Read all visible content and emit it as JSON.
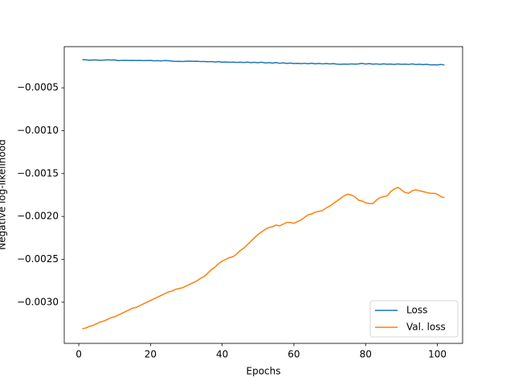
{
  "chart_data": {
    "type": "line",
    "xlabel": "Epochs",
    "ylabel": "Negative log-likelihood",
    "x": [
      1,
      2,
      3,
      4,
      5,
      6,
      7,
      8,
      9,
      10,
      11,
      12,
      13,
      14,
      15,
      16,
      17,
      18,
      19,
      20,
      21,
      22,
      23,
      24,
      25,
      26,
      27,
      28,
      29,
      30,
      31,
      32,
      33,
      34,
      35,
      36,
      37,
      38,
      39,
      40,
      41,
      42,
      43,
      44,
      45,
      46,
      47,
      48,
      49,
      50,
      51,
      52,
      53,
      54,
      55,
      56,
      57,
      58,
      59,
      60,
      61,
      62,
      63,
      64,
      65,
      66,
      67,
      68,
      69,
      70,
      71,
      72,
      73,
      74,
      75,
      76,
      77,
      78,
      79,
      80,
      81,
      82,
      83,
      84,
      85,
      86,
      87,
      88,
      89,
      90,
      91,
      92,
      93,
      94,
      95,
      96,
      97,
      98,
      99,
      100,
      101,
      102
    ],
    "series": [
      {
        "name": "Loss",
        "color": "#1f77b4",
        "values": [
          -0.000172,
          -0.000173,
          -0.000178,
          -0.000175,
          -0.000176,
          -0.000179,
          -0.000177,
          -0.000174,
          -0.000176,
          -0.000175,
          -0.000183,
          -0.000181,
          -0.00018,
          -0.000182,
          -0.000181,
          -0.000182,
          -0.000181,
          -0.000183,
          -0.000182,
          -0.000181,
          -0.000185,
          -0.000183,
          -0.000186,
          -0.000182,
          -0.000184,
          -0.000189,
          -0.000192,
          -0.000191,
          -0.000193,
          -0.00019,
          -0.000189,
          -0.000191,
          -0.00019,
          -0.000194,
          -0.000193,
          -0.000196,
          -0.000194,
          -0.000199,
          -0.000195,
          -0.000202,
          -0.000199,
          -0.000203,
          -0.000201,
          -0.000204,
          -0.000202,
          -0.000205,
          -0.0002,
          -0.000206,
          -0.000203,
          -0.000208,
          -0.000202,
          -0.00021,
          -0.000206,
          -0.000212,
          -0.000205,
          -0.000214,
          -0.000209,
          -0.000216,
          -0.000211,
          -0.000217,
          -0.000215,
          -0.000218,
          -0.000214,
          -0.000219,
          -0.000213,
          -0.00022,
          -0.000216,
          -0.000221,
          -0.000217,
          -0.000222,
          -0.000218,
          -0.000224,
          -0.000226,
          -0.000223,
          -0.000225,
          -0.000221,
          -0.000224,
          -0.000222,
          -0.000215,
          -0.000223,
          -0.000218,
          -0.000224,
          -0.000221,
          -0.000226,
          -0.00022,
          -0.000225,
          -0.000223,
          -0.000227,
          -0.000222,
          -0.000226,
          -0.000224,
          -0.000228,
          -0.000221,
          -0.000229,
          -0.000225,
          -0.00023,
          -0.000226,
          -0.000232,
          -0.000231,
          -0.000233,
          -0.000228,
          -0.000234
        ]
      },
      {
        "name": "Val. loss",
        "color": "#ff7f0e",
        "values": [
          -0.00331,
          -0.0033,
          -0.00328,
          -0.00327,
          -0.00325,
          -0.00323,
          -0.00322,
          -0.0032,
          -0.00318,
          -0.00317,
          -0.00315,
          -0.00313,
          -0.00311,
          -0.00309,
          -0.00307,
          -0.00306,
          -0.00304,
          -0.00302,
          -0.003,
          -0.00298,
          -0.00296,
          -0.00294,
          -0.00292,
          -0.0029,
          -0.00288,
          -0.00287,
          -0.00285,
          -0.00284,
          -0.00283,
          -0.00281,
          -0.00279,
          -0.00277,
          -0.00275,
          -0.00272,
          -0.0027,
          -0.00266,
          -0.00262,
          -0.00259,
          -0.00255,
          -0.00252,
          -0.0025,
          -0.00248,
          -0.00247,
          -0.00244,
          -0.0024,
          -0.00237,
          -0.00233,
          -0.00229,
          -0.00225,
          -0.00221,
          -0.00218,
          -0.00215,
          -0.00213,
          -0.00212,
          -0.0021,
          -0.00211,
          -0.00209,
          -0.00207,
          -0.00207,
          -0.00208,
          -0.00206,
          -0.00204,
          -0.00201,
          -0.00198,
          -0.00197,
          -0.00195,
          -0.00194,
          -0.00193,
          -0.0019,
          -0.00188,
          -0.00185,
          -0.00182,
          -0.00179,
          -0.00176,
          -0.00174,
          -0.00175,
          -0.00177,
          -0.00181,
          -0.00182,
          -0.00184,
          -0.00185,
          -0.00185,
          -0.00181,
          -0.00178,
          -0.00177,
          -0.00176,
          -0.00171,
          -0.00168,
          -0.00166,
          -0.00169,
          -0.00172,
          -0.00173,
          -0.0017,
          -0.00169,
          -0.0017,
          -0.00171,
          -0.00172,
          -0.00173,
          -0.00173,
          -0.00174,
          -0.00177,
          -0.00178
        ]
      }
    ],
    "xlim": [
      -4.05,
      107.05
    ],
    "xticks": [
      0,
      20,
      40,
      60,
      80,
      100
    ],
    "ylim": [
      -0.00348,
      -2e-05
    ],
    "yticks": [
      {
        "value": -0.003,
        "label": "−0.0030"
      },
      {
        "value": -0.0025,
        "label": "−0.0025"
      },
      {
        "value": -0.002,
        "label": "−0.0020"
      },
      {
        "value": -0.0015,
        "label": "−0.0015"
      },
      {
        "value": -0.001,
        "label": "−0.0010"
      },
      {
        "value": -0.0005,
        "label": "−0.0005"
      }
    ],
    "grid": false,
    "legend": "lower right"
  }
}
